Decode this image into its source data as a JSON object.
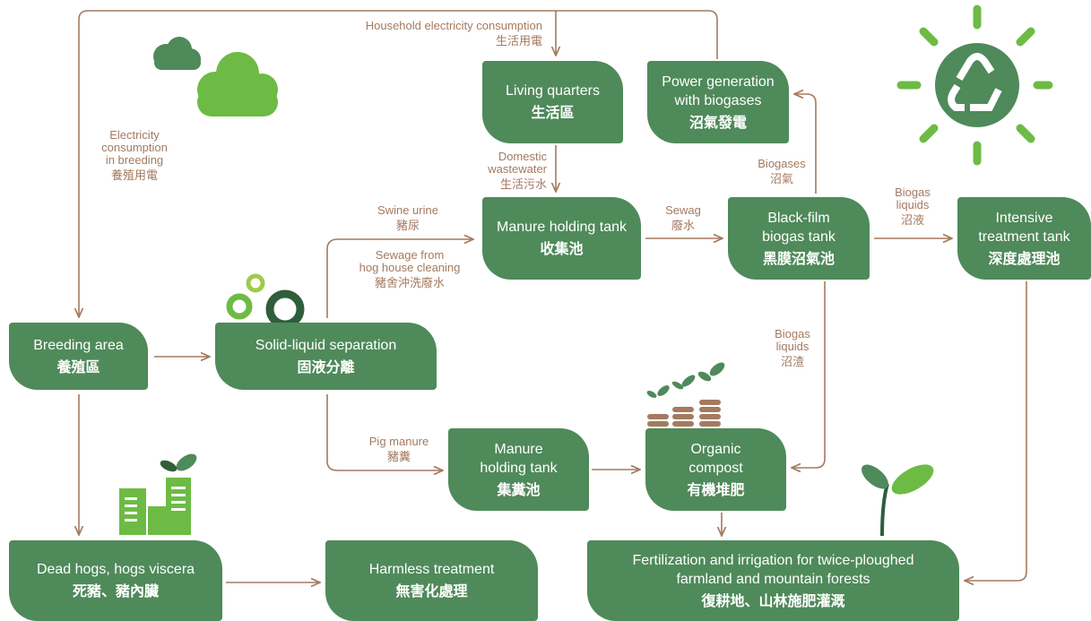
{
  "nodes": [
    {
      "lines": [
        "Living quarters"
      ],
      "zh": "生活區"
    },
    {
      "lines": [
        "Power generation",
        "with biogases"
      ],
      "zh": "沼氣發電"
    },
    {
      "lines": [
        "Manure holding tank"
      ],
      "zh": "收集池"
    },
    {
      "lines": [
        "Black-film",
        "biogas tank"
      ],
      "zh": "黑膜沼氣池"
    },
    {
      "lines": [
        "Intensive",
        "treatment tank"
      ],
      "zh": "深度處理池"
    },
    {
      "lines": [
        "Breeding area"
      ],
      "zh": "養殖區"
    },
    {
      "lines": [
        "Solid-liquid separation"
      ],
      "zh": "固液分離"
    },
    {
      "lines": [
        "Manure",
        "holding tank"
      ],
      "zh": "集糞池"
    },
    {
      "lines": [
        "Organic",
        "compost"
      ],
      "zh": "有機堆肥"
    },
    {
      "lines": [
        "Dead hogs, hogs viscera"
      ],
      "zh": "死豬、豬內臟"
    },
    {
      "lines": [
        "Harmless treatment"
      ],
      "zh": "無害化處理"
    },
    {
      "lines": [
        "Fertilization and irrigation for twice-ploughed",
        "farmland and mountain forests"
      ],
      "zh": "復耕地、山林施肥灌溉"
    }
  ],
  "edge_labels": [
    {
      "lines": [
        "Household electricity consumption"
      ],
      "zh": "生活用電"
    },
    {
      "lines": [
        "Electricity",
        "consumption",
        "in breeding"
      ],
      "zh": "養殖用電"
    },
    {
      "lines": [
        "Domestic",
        "wastewater"
      ],
      "zh": "生活污水"
    },
    {
      "lines": [
        "Swine urine"
      ],
      "zh": "豬尿"
    },
    {
      "lines": [
        "Sewage from",
        "hog house cleaning"
      ],
      "zh": "豬舍沖洗廢水"
    },
    {
      "lines": [
        "Sewag"
      ],
      "zh": "廢水"
    },
    {
      "lines": [
        "Biogases"
      ],
      "zh": "沼氣"
    },
    {
      "lines": [
        "Biogas",
        "liquids"
      ],
      "zh": "沼液"
    },
    {
      "lines": [
        "Biogas",
        "liquids"
      ],
      "zh": "沼渣"
    },
    {
      "lines": [
        "Pig manure"
      ],
      "zh": "豬糞"
    }
  ]
}
